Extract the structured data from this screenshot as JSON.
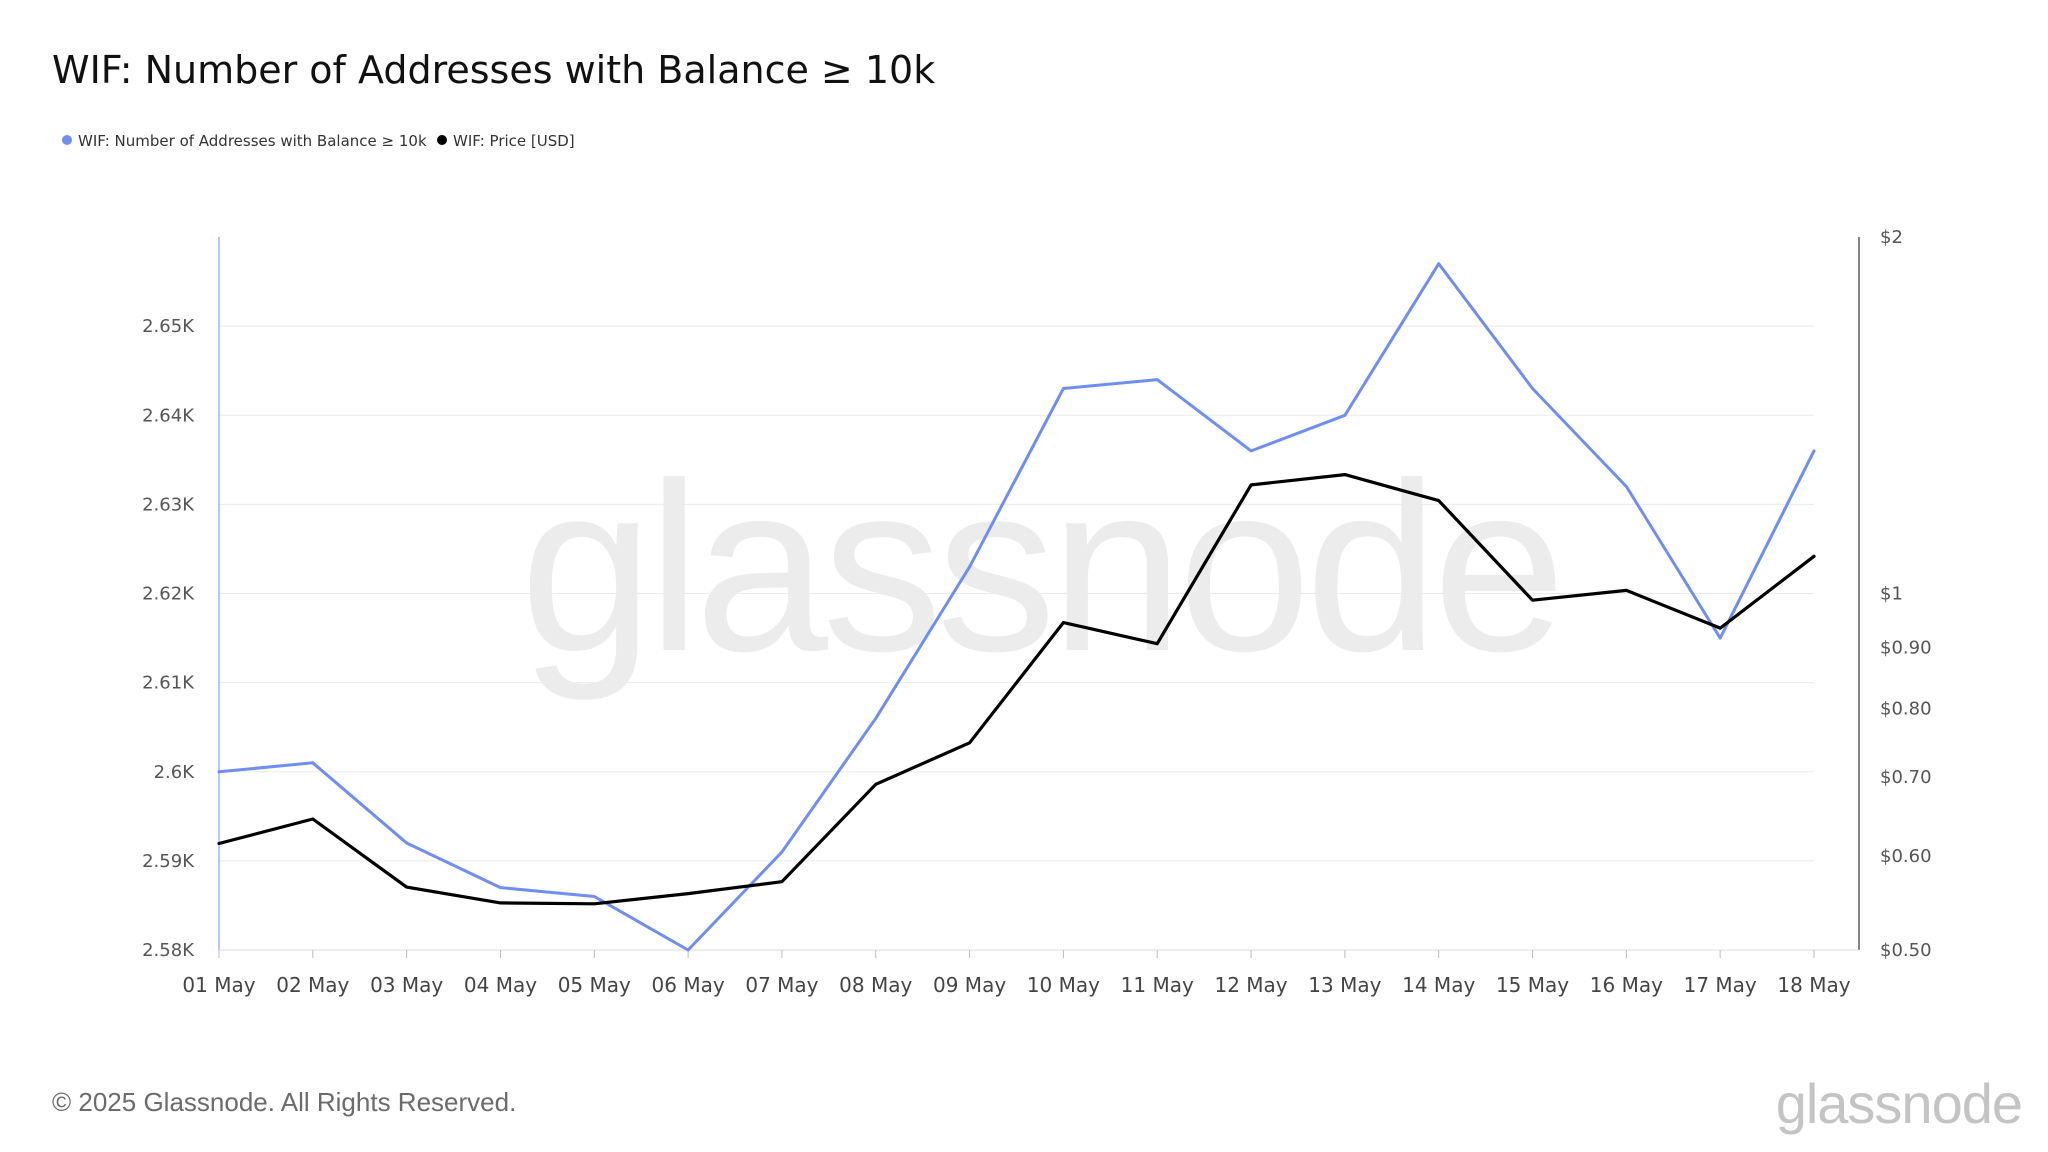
{
  "chart_data": {
    "type": "line",
    "title": "WIF: Number of Addresses with Balance ≥ 10k",
    "categories": [
      "01 May",
      "02 May",
      "03 May",
      "04 May",
      "05 May",
      "06 May",
      "07 May",
      "08 May",
      "09 May",
      "10 May",
      "11 May",
      "12 May",
      "13 May",
      "14 May",
      "15 May",
      "16 May",
      "17 May",
      "18 May"
    ],
    "series": [
      {
        "name": "WIF: Number of Addresses with Balance ≥ 10k",
        "axis": "left",
        "color": "#6f8ef0",
        "values": [
          2600,
          2601,
          2592,
          2587,
          2586,
          2580,
          2591,
          2606,
          2623,
          2643,
          2644,
          2636,
          2640,
          2657,
          2643,
          2632,
          2615,
          2636
        ]
      },
      {
        "name": "WIF: Price [USD]",
        "axis": "right",
        "color": "#000000",
        "values": [
          0.615,
          0.645,
          0.565,
          0.548,
          0.547,
          0.558,
          0.571,
          0.69,
          0.748,
          0.945,
          0.907,
          1.235,
          1.26,
          1.198,
          0.987,
          1.006,
          0.935,
          1.075
        ]
      }
    ],
    "y_left": {
      "ylim": [
        2580,
        2660
      ],
      "ticks": [
        2580,
        2590,
        2600,
        2610,
        2620,
        2630,
        2640,
        2650
      ],
      "tick_labels": [
        "2.58K",
        "2.59K",
        "2.6K",
        "2.61K",
        "2.62K",
        "2.63K",
        "2.64K",
        "2.65K"
      ]
    },
    "y_right": {
      "scale": "log",
      "ylim": [
        0.5,
        2
      ],
      "ticks": [
        0.5,
        0.6,
        0.7,
        0.8,
        0.9,
        1,
        2
      ],
      "tick_labels": [
        "$0.50",
        "$0.60",
        "$0.70",
        "$0.80",
        "$0.90",
        "$1",
        "$2"
      ]
    },
    "grid": true,
    "legend": "top-left"
  },
  "footer": {
    "copyright": "© 2025 Glassnode. All Rights Reserved.",
    "logo": "glassnode"
  },
  "watermark": "glassnode"
}
